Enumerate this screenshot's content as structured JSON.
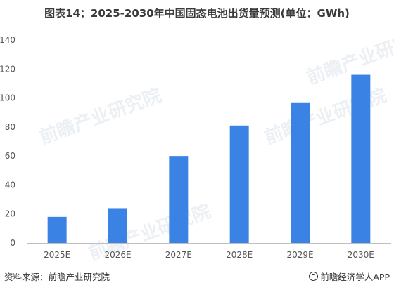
{
  "chart_data": {
    "type": "bar",
    "title": "图表14：2025-2030年中国固态电池出货量预测(单位：GWh)",
    "categories": [
      "2025E",
      "2026E",
      "2027E",
      "2028E",
      "2029E",
      "2030E"
    ],
    "values": [
      18,
      24,
      60,
      81,
      97,
      116
    ],
    "ylim": [
      0,
      140
    ],
    "yticks": [
      0,
      20,
      40,
      60,
      80,
      100,
      120,
      140
    ],
    "xlabel": "",
    "ylabel": "",
    "grid": false,
    "legend": "none",
    "bar_color": "#3a82e4",
    "axis_color": "#bfbfbf"
  },
  "footer": {
    "source": "资料来源：前瞻产业研究院",
    "brand": "前瞻经济学人APP"
  },
  "watermark": {
    "text": "前瞻产业研究院",
    "color": "#d7dee8"
  }
}
